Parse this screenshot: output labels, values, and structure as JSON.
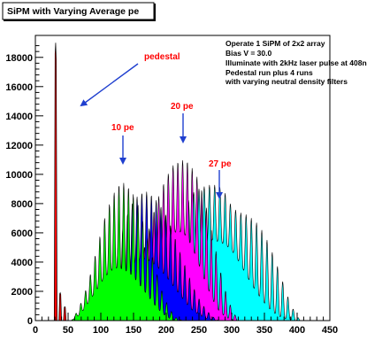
{
  "chart_data": {
    "type": "area",
    "title": "SiPM with Varying Average pe",
    "xlim": [
      0,
      450
    ],
    "ylim": [
      0,
      19500
    ],
    "x_ticks": [
      0,
      50,
      100,
      150,
      200,
      250,
      300,
      350,
      400,
      450
    ],
    "y_ticks": [
      0,
      2000,
      4000,
      6000,
      8000,
      10000,
      12000,
      14000,
      16000,
      18000
    ],
    "grid": false,
    "notes": [
      "Operate 1 SiPM of 2x2 array",
      "Bias V = 30.0",
      "Illuminate with 2kHz laser pulse at 408nm",
      "Pedestal run plus 4 runs",
      "with varying neutral density filters"
    ],
    "annotations": [
      {
        "text": "pedestal",
        "x": 35,
        "y": 16800
      },
      {
        "text": "10 pe",
        "x": 134,
        "y": 11800
      },
      {
        "text": "20 pe",
        "x": 225,
        "y": 14600
      },
      {
        "text": "27 pe",
        "x": 280,
        "y": 10800
      }
    ],
    "series": [
      {
        "label": "27 pe",
        "color": "#00ffff",
        "x": [
          160,
          170,
          180,
          190,
          200,
          210,
          220,
          230,
          240,
          250,
          260,
          270,
          280,
          290,
          300,
          310,
          320,
          330,
          340,
          350,
          360,
          370,
          380,
          390,
          400,
          405
        ],
        "top": [
          150,
          500,
          1100,
          2100,
          3600,
          5200,
          6700,
          7900,
          8700,
          9000,
          9200,
          9300,
          9200,
          8700,
          7800,
          7400,
          7300,
          7000,
          6600,
          5900,
          4900,
          3700,
          2400,
          1100,
          300,
          0
        ],
        "bot": [
          0,
          150,
          500,
          1000,
          1800,
          2800,
          3600,
          4400,
          5100,
          5300,
          5400,
          5500,
          5400,
          5200,
          4800,
          4100,
          3300,
          2500,
          1800,
          1200,
          700,
          350,
          150,
          50,
          0,
          0
        ],
        "period": 8,
        "peak_x": 250
      },
      {
        "label": "20 pe",
        "color": "#ff00ff",
        "x": [
          110,
          120,
          130,
          140,
          150,
          160,
          170,
          180,
          190,
          200,
          210,
          220,
          230,
          240,
          250,
          260,
          270,
          280,
          290,
          300,
          310
        ],
        "top": [
          0,
          300,
          700,
          1400,
          2500,
          3900,
          5600,
          7300,
          8700,
          9800,
          10600,
          10900,
          11000,
          10400,
          9600,
          8000,
          6000,
          3900,
          2100,
          800,
          0
        ],
        "bot": [
          0,
          100,
          300,
          600,
          1100,
          1800,
          2700,
          3600,
          4600,
          5400,
          6000,
          6100,
          5800,
          5000,
          3800,
          2600,
          1500,
          700,
          250,
          50,
          0
        ],
        "period": 7.3,
        "peak_x": 225
      },
      {
        "label": "blue",
        "color": "#0000ff",
        "x": [
          80,
          90,
          100,
          110,
          120,
          130,
          140,
          150,
          160,
          170,
          180,
          190,
          200,
          210,
          220,
          230,
          240,
          250,
          260,
          270,
          280
        ],
        "top": [
          0,
          400,
          1200,
          2400,
          4000,
          5700,
          7200,
          8200,
          8700,
          8800,
          8500,
          7900,
          7200,
          6100,
          4800,
          3600,
          2400,
          1500,
          800,
          300,
          0
        ],
        "bot": [
          0,
          150,
          500,
          1000,
          1700,
          2500,
          3300,
          3900,
          4200,
          4200,
          3900,
          3500,
          3000,
          2400,
          1800,
          1200,
          700,
          400,
          150,
          50,
          0
        ],
        "period": 7.3,
        "peak_x": 170
      },
      {
        "label": "10 pe",
        "color": "#00ff00",
        "x": [
          55,
          65,
          75,
          85,
          95,
          105,
          115,
          125,
          135,
          145,
          155,
          165,
          175,
          185,
          195,
          205,
          215,
          225
        ],
        "top": [
          0,
          700,
          1800,
          3300,
          5100,
          6900,
          8200,
          9200,
          9400,
          9000,
          8200,
          6700,
          5000,
          3300,
          1800,
          800,
          200,
          0
        ],
        "bot": [
          0,
          300,
          800,
          1500,
          2200,
          2900,
          3400,
          3600,
          3500,
          3200,
          2700,
          2100,
          1500,
          900,
          450,
          150,
          0,
          0
        ],
        "period": 7.3,
        "peak_x": 135
      },
      {
        "label": "pedestal",
        "color": "#ff0000",
        "type": "peaks",
        "peaks": [
          {
            "x": 31,
            "y": 19000
          },
          {
            "x": 38,
            "y": 1900
          },
          {
            "x": 45,
            "y": 950
          }
        ]
      }
    ]
  }
}
